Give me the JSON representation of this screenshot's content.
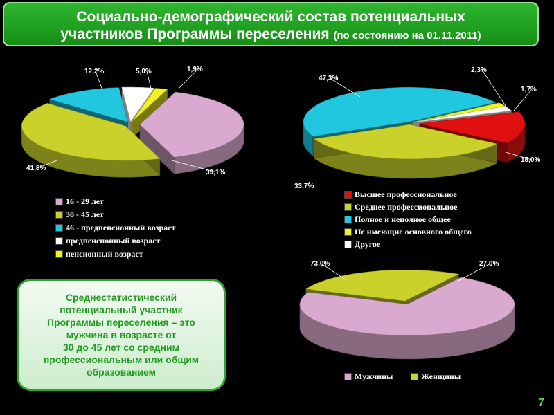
{
  "header": {
    "title_line1": "Социально-демографический состав потенциальных",
    "title_line2": "участников Программы переселения",
    "title_date": "(по состоянию на 01.11.2011)"
  },
  "chart_data": [
    {
      "type": "pie",
      "categories": [
        "16 - 29 лет",
        "30 - 45 лет",
        "46 - предпенсионный возраст",
        "предпенсионный возраст",
        "пенсионный возраст"
      ],
      "values": [
        39.1,
        41.8,
        12.2,
        5.0,
        1.9
      ],
      "value_labels": [
        "39,1%",
        "41,8%",
        "12,2%",
        "5,0%",
        "1,9%"
      ],
      "colors": [
        "#d9a9cf",
        "#c9d12a",
        "#21c7df",
        "#ffffff",
        "#f2f21c"
      ],
      "legend_position": "bottom"
    },
    {
      "type": "pie",
      "categories": [
        "Высшее профессиональное",
        "Среднее профессиональное",
        "Полное и неполное общее",
        "Не имеющие основного общего",
        "Другое"
      ],
      "values": [
        15.0,
        33.7,
        47.3,
        1.7,
        2.3
      ],
      "value_labels": [
        "15,0%",
        "33,7%",
        "47,3%",
        "1,7%",
        "2,3%"
      ],
      "colors": [
        "#e01010",
        "#c9d12a",
        "#21c7df",
        "#f2f21c",
        "#ffffff"
      ],
      "legend_position": "bottom"
    },
    {
      "type": "pie",
      "categories": [
        "Мужчины",
        "Женщины"
      ],
      "values": [
        73.0,
        27.0
      ],
      "value_labels": [
        "73,0%",
        "27,0%"
      ],
      "colors": [
        "#d9a9cf",
        "#c9d12a"
      ],
      "legend_position": "bottom"
    }
  ],
  "summary": {
    "text_lines": [
      "Среднестатистический",
      "потенциальный участник",
      "Программы переселения – это",
      "мужчина в возрасте от",
      "30 до 45 лет со средним",
      "профессиональным или общим",
      "образованием"
    ]
  },
  "page_number": "7"
}
